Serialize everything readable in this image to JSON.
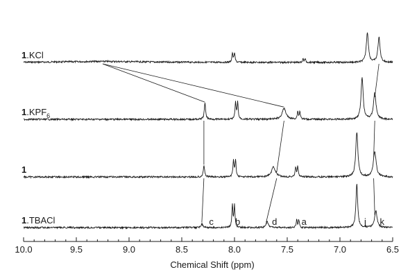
{
  "chart_data": {
    "type": "line",
    "title": "",
    "xlabel": "Chemical Shift (ppm)",
    "ylabel": "",
    "xlim": [
      10.0,
      6.5
    ],
    "x_reversed": true,
    "xticks": [
      "10.0",
      "9.5",
      "9.0",
      "8.5",
      "8.0",
      "7.5",
      "7.0",
      "6.5"
    ],
    "grid": false,
    "series": [
      {
        "label_bold": "1",
        "label_rest": ".KCl",
        "label_sub": "",
        "peaks": [
          {
            "ppm": 9.25,
            "height": 0.06,
            "width": 0.45
          },
          {
            "ppm": 8.0,
            "height": 0.55,
            "width": 0.006
          },
          {
            "ppm": 8.02,
            "height": 0.55,
            "width": 0.006
          },
          {
            "ppm": 7.33,
            "height": 0.2,
            "width": 0.006
          },
          {
            "ppm": 7.35,
            "height": 0.2,
            "width": 0.006
          },
          {
            "ppm": 6.74,
            "height": 1.8,
            "width": 0.012
          },
          {
            "ppm": 6.63,
            "height": 1.5,
            "width": 0.012
          }
        ]
      },
      {
        "label_bold": "1",
        "label_rest": ".KPF",
        "label_sub": "6",
        "peaks": [
          {
            "ppm": 8.28,
            "height": 0.95,
            "width": 0.008
          },
          {
            "ppm": 7.97,
            "height": 1.0,
            "width": 0.006
          },
          {
            "ppm": 7.99,
            "height": 1.0,
            "width": 0.006
          },
          {
            "ppm": 7.53,
            "height": 0.65,
            "width": 0.022
          },
          {
            "ppm": 7.38,
            "height": 0.45,
            "width": 0.006
          },
          {
            "ppm": 7.4,
            "height": 0.45,
            "width": 0.006
          },
          {
            "ppm": 6.79,
            "height": 2.5,
            "width": 0.012
          },
          {
            "ppm": 6.67,
            "height": 1.6,
            "width": 0.014
          }
        ]
      },
      {
        "label_bold": "1",
        "label_rest": "",
        "label_sub": "",
        "peaks": [
          {
            "ppm": 8.29,
            "height": 0.65,
            "width": 0.008
          },
          {
            "ppm": 7.99,
            "height": 1.0,
            "width": 0.006
          },
          {
            "ppm": 8.01,
            "height": 1.0,
            "width": 0.006
          },
          {
            "ppm": 7.63,
            "height": 0.6,
            "width": 0.022
          },
          {
            "ppm": 7.4,
            "height": 0.6,
            "width": 0.006
          },
          {
            "ppm": 7.42,
            "height": 0.6,
            "width": 0.006
          },
          {
            "ppm": 6.84,
            "height": 2.7,
            "width": 0.012
          },
          {
            "ppm": 6.67,
            "height": 1.5,
            "width": 0.016
          }
        ]
      },
      {
        "label_bold": "1",
        "label_rest": ".TBACl",
        "label_sub": "",
        "peaks": [
          {
            "ppm": 8.31,
            "height": 0.22,
            "width": 0.01
          },
          {
            "ppm": 8.0,
            "height": 1.3,
            "width": 0.006
          },
          {
            "ppm": 8.02,
            "height": 1.3,
            "width": 0.006
          },
          {
            "ppm": 7.69,
            "height": 0.38,
            "width": 0.012
          },
          {
            "ppm": 7.39,
            "height": 0.45,
            "width": 0.006
          },
          {
            "ppm": 7.41,
            "height": 0.45,
            "width": 0.006
          },
          {
            "ppm": 6.84,
            "height": 2.6,
            "width": 0.01
          },
          {
            "ppm": 6.66,
            "height": 1.0,
            "width": 0.014
          }
        ]
      }
    ],
    "peak_labels": [
      {
        "text": "c",
        "ppm": 8.22
      },
      {
        "text": "b",
        "ppm": 7.97
      },
      {
        "text": "d",
        "ppm": 7.62
      },
      {
        "text": "a",
        "ppm": 7.34
      },
      {
        "text": "j",
        "ppm": 6.76
      },
      {
        "text": "k",
        "ppm": 6.6
      }
    ],
    "correlation_lines": [
      {
        "from": {
          "series": 0,
          "ppm": 9.25
        },
        "to": {
          "series": 1,
          "ppm": 8.28
        }
      },
      {
        "from": {
          "series": 0,
          "ppm": 9.25
        },
        "to": {
          "series": 1,
          "ppm": 7.53
        }
      },
      {
        "from": {
          "series": 1,
          "ppm": 8.29
        },
        "to": {
          "series": 2,
          "ppm": 8.29
        }
      },
      {
        "from": {
          "series": 2,
          "ppm": 8.29
        },
        "to": {
          "series": 3,
          "ppm": 8.31
        }
      },
      {
        "from": {
          "series": 1,
          "ppm": 7.53
        },
        "to": {
          "series": 2,
          "ppm": 7.6
        }
      },
      {
        "from": {
          "series": 2,
          "ppm": 7.6
        },
        "to": {
          "series": 3,
          "ppm": 7.7
        }
      },
      {
        "from": {
          "series": 0,
          "ppm": 6.63
        },
        "to": {
          "series": 1,
          "ppm": 6.67
        }
      },
      {
        "from": {
          "series": 1,
          "ppm": 6.67
        },
        "to": {
          "series": 2,
          "ppm": 6.68
        }
      },
      {
        "from": {
          "series": 2,
          "ppm": 6.68
        },
        "to": {
          "series": 3,
          "ppm": 6.67
        }
      }
    ]
  }
}
